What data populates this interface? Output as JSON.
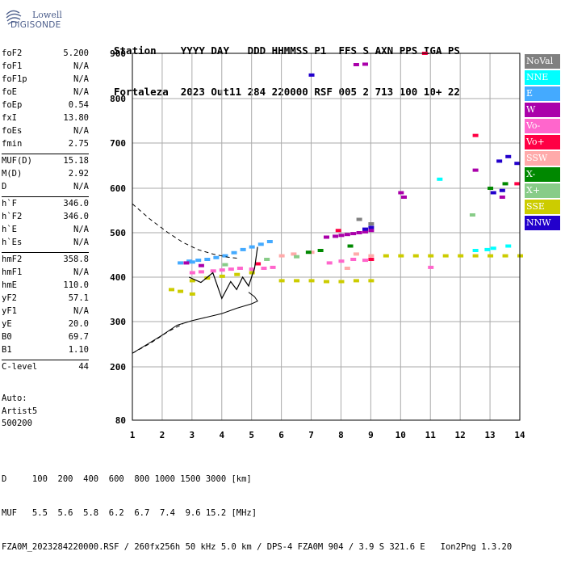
{
  "logo": {
    "line1": "Lowell",
    "line2": "DIGISONDE"
  },
  "header": {
    "line1": "Station    YYYY DAY   DDD HHMMSS P1  FFS S AXN PPS IGA PS",
    "line2": "Fortaleza  2023 Out11 284 220000 RSF 005 2 713 100 10+ 22"
  },
  "params": [
    {
      "name": "foF2",
      "value": "5.200"
    },
    {
      "name": "foF1",
      "value": "N/A"
    },
    {
      "name": "foF1p",
      "value": "N/A"
    },
    {
      "name": "foE",
      "value": "N/A"
    },
    {
      "name": "foEp",
      "value": "0.54"
    },
    {
      "name": "fxI",
      "value": "13.80"
    },
    {
      "name": "foEs",
      "value": "N/A"
    },
    {
      "name": "fmin",
      "value": "2.75"
    },
    {
      "name": "MUF(D)",
      "value": "15.18"
    },
    {
      "name": "M(D)",
      "value": "2.92"
    },
    {
      "name": "D",
      "value": "N/A"
    },
    {
      "name": "h`F",
      "value": "346.0"
    },
    {
      "name": "h`F2",
      "value": "346.0"
    },
    {
      "name": "h`E",
      "value": "N/A"
    },
    {
      "name": "h`Es",
      "value": "N/A"
    },
    {
      "name": "hmF2",
      "value": "358.8"
    },
    {
      "name": "hmF1",
      "value": "N/A"
    },
    {
      "name": "hmE",
      "value": "110.0"
    },
    {
      "name": "yF2",
      "value": "57.1"
    },
    {
      "name": "yF1",
      "value": "N/A"
    },
    {
      "name": "yE",
      "value": "20.0"
    },
    {
      "name": "B0",
      "value": "69.7"
    },
    {
      "name": "B1",
      "value": "1.10"
    },
    {
      "name": "C-level",
      "value": "44"
    }
  ],
  "auto": {
    "line1": "Auto:",
    "line2": "Artist5",
    "line3": "500200"
  },
  "footer": {
    "line1": "D     100  200  400  600  800 1000 1500 3000 [km]",
    "line2": "MUF   5.5  5.6  5.8  6.2  6.7  7.4  9.6 15.2 [MHz]",
    "line3": "FZA0M_2023284220000.RSF / 260fx256h 50 kHz 5.0 km / DPS-4 FZA0M 904 / 3.9 S 321.6 E   Ion2Png 1.3.20"
  },
  "legend": [
    {
      "label": "NoVal",
      "color": "#808080"
    },
    {
      "label": "NNE",
      "color": "#00ffff"
    },
    {
      "label": "E",
      "color": "#44aaff"
    },
    {
      "label": "W",
      "color": "#aa00aa"
    },
    {
      "label": "Vo-",
      "color": "#ff66cc"
    },
    {
      "label": "Vo+",
      "color": "#ff0044"
    },
    {
      "label": "SSW",
      "color": "#ffaaaa"
    },
    {
      "label": "X-",
      "color": "#008800"
    },
    {
      "label": "X+",
      "color": "#88cc88"
    },
    {
      "label": "SSE",
      "color": "#cccc00"
    },
    {
      "label": "NNW",
      "color": "#2200cc"
    }
  ],
  "chart_data": {
    "type": "scatter",
    "x_ticks": [
      1,
      2,
      3,
      4,
      5,
      6,
      7,
      8,
      9,
      10,
      11,
      12,
      13,
      14
    ],
    "y_ticks": [
      80,
      200,
      300,
      400,
      500,
      600,
      700,
      800,
      900
    ],
    "xlim": [
      1,
      14
    ],
    "y_axis": "height (km), quasi-log scale",
    "grid": true,
    "series": [
      {
        "name": "E",
        "color": "#44aaff",
        "points": [
          [
            2.9,
            436
          ],
          [
            3.2,
            438
          ],
          [
            3.5,
            440
          ],
          [
            3.8,
            444
          ],
          [
            4.1,
            448
          ],
          [
            4.4,
            455
          ],
          [
            4.7,
            462
          ],
          [
            5.0,
            468
          ],
          [
            5.3,
            474
          ],
          [
            5.6,
            480
          ],
          [
            2.6,
            432
          ],
          [
            3.0,
            434
          ]
        ]
      },
      {
        "name": "W",
        "color": "#aa00aa",
        "points": [
          [
            7.8,
            492
          ],
          [
            8.0,
            494
          ],
          [
            8.2,
            496
          ],
          [
            8.4,
            498
          ],
          [
            8.6,
            500
          ],
          [
            8.8,
            502
          ],
          [
            9.0,
            505
          ],
          [
            7.5,
            490
          ],
          [
            10.0,
            590
          ],
          [
            10.1,
            580
          ],
          [
            12.5,
            640
          ],
          [
            13.4,
            580
          ],
          [
            8.5,
            875
          ],
          [
            8.8,
            876
          ],
          [
            2.8,
            432
          ],
          [
            3.3,
            426
          ]
        ]
      },
      {
        "name": "Vo-",
        "color": "#ff66cc",
        "points": [
          [
            3.0,
            410
          ],
          [
            3.3,
            412
          ],
          [
            3.7,
            414
          ],
          [
            4.0,
            416
          ],
          [
            4.3,
            418
          ],
          [
            4.6,
            420
          ],
          [
            5.0,
            418
          ],
          [
            5.4,
            420
          ],
          [
            5.7,
            422
          ],
          [
            7.6,
            432
          ],
          [
            8.0,
            436
          ],
          [
            8.4,
            440
          ],
          [
            8.8,
            438
          ],
          [
            11.0,
            422
          ]
        ]
      },
      {
        "name": "Vo+",
        "color": "#ff0044",
        "points": [
          [
            12.5,
            717
          ],
          [
            13.9,
            610
          ],
          [
            9.0,
            440
          ],
          [
            5.2,
            430
          ],
          [
            10.8,
            900
          ],
          [
            7.9,
            505
          ]
        ]
      },
      {
        "name": "SSW",
        "color": "#ffaaaa",
        "points": [
          [
            6.0,
            448
          ],
          [
            6.4,
            452
          ],
          [
            7.0,
            456
          ],
          [
            8.5,
            452
          ],
          [
            9.0,
            448
          ],
          [
            8.2,
            420
          ]
        ]
      },
      {
        "name": "X-",
        "color": "#008800",
        "points": [
          [
            6.9,
            456
          ],
          [
            7.3,
            460
          ],
          [
            8.3,
            470
          ],
          [
            13.0,
            600
          ],
          [
            13.5,
            610
          ]
        ]
      },
      {
        "name": "X+",
        "color": "#88cc88",
        "points": [
          [
            4.1,
            428
          ],
          [
            5.5,
            440
          ],
          [
            6.5,
            446
          ],
          [
            12.4,
            540
          ]
        ]
      },
      {
        "name": "SSE",
        "color": "#cccc00",
        "points": [
          [
            3.0,
            392
          ],
          [
            3.5,
            398
          ],
          [
            4.0,
            402
          ],
          [
            4.5,
            406
          ],
          [
            5.0,
            410
          ],
          [
            6.0,
            392
          ],
          [
            6.5,
            392
          ],
          [
            7.0,
            392
          ],
          [
            7.5,
            390
          ],
          [
            8.0,
            390
          ],
          [
            8.5,
            392
          ],
          [
            9.0,
            392
          ],
          [
            9.5,
            448
          ],
          [
            10.0,
            448
          ],
          [
            10.5,
            448
          ],
          [
            11.0,
            448
          ],
          [
            11.5,
            448
          ],
          [
            12.0,
            448
          ],
          [
            12.5,
            448
          ],
          [
            13.0,
            448
          ],
          [
            13.5,
            448
          ],
          [
            14.0,
            448
          ],
          [
            2.3,
            372
          ],
          [
            2.6,
            368
          ],
          [
            3.0,
            362
          ]
        ]
      },
      {
        "name": "NNW",
        "color": "#2200cc",
        "points": [
          [
            7.0,
            852
          ],
          [
            13.3,
            660
          ],
          [
            13.6,
            670
          ],
          [
            13.9,
            655
          ],
          [
            13.1,
            590
          ],
          [
            13.4,
            595
          ],
          [
            8.8,
            508
          ],
          [
            9.0,
            512
          ]
        ]
      },
      {
        "name": "NNE",
        "color": "#00ffff",
        "points": [
          [
            12.9,
            462
          ],
          [
            13.1,
            465
          ],
          [
            13.6,
            470
          ],
          [
            12.5,
            460
          ],
          [
            11.3,
            620
          ]
        ]
      },
      {
        "name": "NoVal",
        "color": "#808080",
        "points": [
          [
            9.0,
            520
          ],
          [
            8.6,
            530
          ]
        ]
      }
    ]
  }
}
